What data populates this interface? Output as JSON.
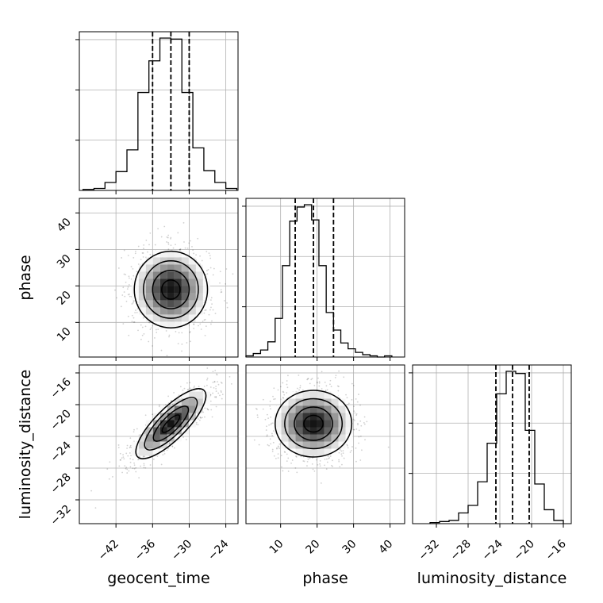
{
  "chart_data": {
    "type": "corner",
    "parameters": [
      "geocent_time",
      "phase",
      "luminosity_distance"
    ],
    "axis_labels": {
      "geocent_time": "geocent_time",
      "phase": "phase",
      "luminosity_distance": "luminosity_distance"
    },
    "ranges": {
      "geocent_time": [
        -48,
        -22
      ],
      "phase": [
        0.5,
        44
      ],
      "luminosity_distance": [
        -35,
        -15
      ]
    },
    "ticks": {
      "geocent_time": [
        -42,
        -36,
        -30,
        -24
      ],
      "phase": [
        10,
        20,
        30,
        40
      ],
      "luminosity_distance": [
        -32,
        -28,
        -24,
        -20,
        -16
      ]
    },
    "tick_labels": {
      "geocent_time": [
        "−42",
        "−36",
        "−30",
        "−24"
      ],
      "phase": [
        "10",
        "20",
        "30",
        "40"
      ],
      "luminosity_distance": [
        "−32",
        "−28",
        "−24",
        "−20",
        "−16"
      ]
    },
    "quantiles": {
      "geocent_time": [
        -36.0,
        -33.0,
        -30.0
      ],
      "phase": [
        14.0,
        19.0,
        24.5
      ],
      "luminosity_distance": [
        -24.5,
        -22.4,
        -20.3
      ]
    },
    "histograms": {
      "geocent_time": {
        "bins": [
          -47.4,
          -45.6,
          -43.8,
          -42.0,
          -40.2,
          -38.4,
          -36.6,
          -34.8,
          -33.0,
          -31.2,
          -29.4,
          -27.6,
          -25.8,
          -24.0,
          -22.2
        ],
        "counts": [
          1,
          2,
          8,
          19,
          41,
          99,
          131,
          154,
          153,
          99,
          43,
          20,
          8,
          2
        ]
      },
      "phase": {
        "bins": [
          0.5,
          2.5,
          4.5,
          6.5,
          8.5,
          10.5,
          12.5,
          14.5,
          16.5,
          18.5,
          20.5,
          22.5,
          24.5,
          26.5,
          28.5,
          30.5,
          32.5,
          34.5,
          36.5,
          38.5,
          40.5
        ],
        "counts": [
          1,
          3,
          6,
          13,
          33,
          78,
          116,
          128,
          130,
          117,
          78,
          38,
          23,
          12,
          7,
          4,
          2,
          1,
          0,
          1
        ]
      },
      "luminosity_distance": {
        "bins": [
          -32.8,
          -31.6,
          -30.4,
          -29.2,
          -28.0,
          -26.8,
          -25.6,
          -24.4,
          -23.2,
          -22.0,
          -20.8,
          -19.6,
          -18.4,
          -17.2,
          -16.0
        ],
        "counts": [
          1,
          2,
          3,
          10,
          17,
          39,
          75,
          121,
          142,
          140,
          87,
          37,
          13,
          3
        ]
      }
    },
    "pairs": [
      {
        "x": "geocent_time",
        "y": "phase",
        "correlation": 0.0,
        "contour_levels": 4
      },
      {
        "x": "geocent_time",
        "y": "luminosity_distance",
        "correlation": 0.8,
        "contour_levels": 4
      },
      {
        "x": "phase",
        "y": "luminosity_distance",
        "correlation": 0.0,
        "contour_levels": 4
      }
    ],
    "grid": true
  }
}
